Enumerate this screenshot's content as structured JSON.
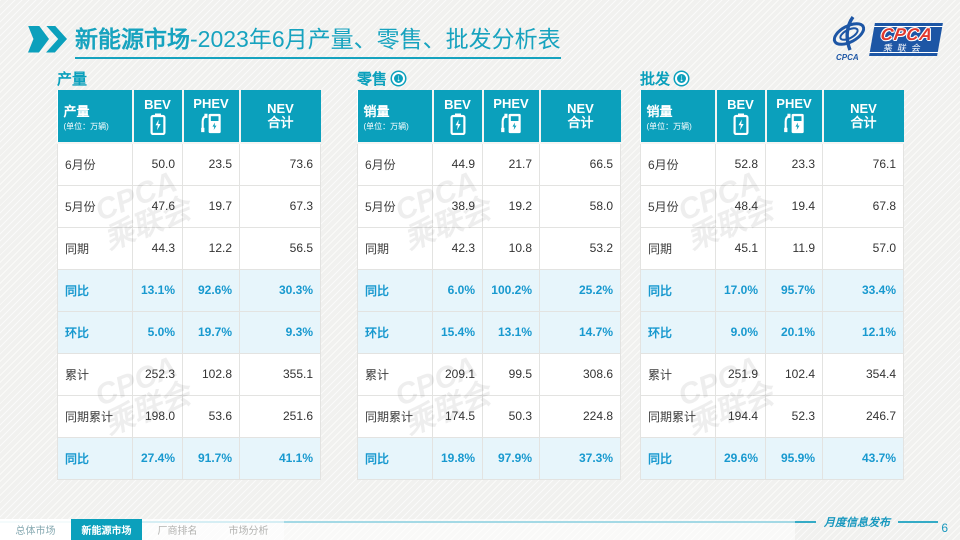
{
  "colors": {
    "accent": "#0BA0BC",
    "highlight_text": "#1899CF",
    "highlight_bg": "#E7F5FB",
    "logo_blue": "#1D56A5",
    "title": "#17A3BF",
    "page_bg": "#F1F1EF"
  },
  "title": {
    "emphasis": "新能源市场",
    "rest": "-2023年6月产量、零售、批发分析表"
  },
  "logo": {
    "emblem_text": "CPCA",
    "badge_text": "CPCA",
    "badge_sub": "乘联会"
  },
  "watermark": "CPCA\n乘联会",
  "tables": [
    {
      "section_title": "产量",
      "header": {
        "label": "产量",
        "unit": "(单位：万辆)",
        "col_bev": "BEV",
        "col_phev": "PHEV",
        "col_nev": "NEV\n合计"
      },
      "rows": [
        {
          "label": "6月份",
          "values": [
            "50.0",
            "23.5",
            "73.6"
          ],
          "highlight": false
        },
        {
          "label": "5月份",
          "values": [
            "47.6",
            "19.7",
            "67.3"
          ],
          "highlight": false
        },
        {
          "label": "同期",
          "values": [
            "44.3",
            "12.2",
            "56.5"
          ],
          "highlight": false
        },
        {
          "label": "同比",
          "values": [
            "13.1%",
            "92.6%",
            "30.3%"
          ],
          "highlight": true
        },
        {
          "label": "环比",
          "values": [
            "5.0%",
            "19.7%",
            "9.3%"
          ],
          "highlight": true
        },
        {
          "label": "累计",
          "values": [
            "252.3",
            "102.8",
            "355.1"
          ],
          "highlight": false
        },
        {
          "label": "同期累计",
          "values": [
            "198.0",
            "53.6",
            "251.6"
          ],
          "highlight": false
        },
        {
          "label": "同比",
          "values": [
            "27.4%",
            "91.7%",
            "41.1%"
          ],
          "highlight": true
        }
      ]
    },
    {
      "section_title": "零售",
      "header": {
        "label": "销量",
        "unit": "(单位：万辆)",
        "col_bev": "BEV",
        "col_phev": "PHEV",
        "col_nev": "NEV\n合计"
      },
      "rows": [
        {
          "label": "6月份",
          "values": [
            "44.9",
            "21.7",
            "66.5"
          ],
          "highlight": false
        },
        {
          "label": "5月份",
          "values": [
            "38.9",
            "19.2",
            "58.0"
          ],
          "highlight": false
        },
        {
          "label": "同期",
          "values": [
            "42.3",
            "10.8",
            "53.2"
          ],
          "highlight": false
        },
        {
          "label": "同比",
          "values": [
            "6.0%",
            "100.2%",
            "25.2%"
          ],
          "highlight": true
        },
        {
          "label": "环比",
          "values": [
            "15.4%",
            "13.1%",
            "14.7%"
          ],
          "highlight": true
        },
        {
          "label": "累计",
          "values": [
            "209.1",
            "99.5",
            "308.6"
          ],
          "highlight": false
        },
        {
          "label": "同期累计",
          "values": [
            "174.5",
            "50.3",
            "224.8"
          ],
          "highlight": false
        },
        {
          "label": "同比",
          "values": [
            "19.8%",
            "97.9%",
            "37.3%"
          ],
          "highlight": true
        }
      ]
    },
    {
      "section_title": "批发",
      "header": {
        "label": "销量",
        "unit": "(单位：万辆)",
        "col_bev": "BEV",
        "col_phev": "PHEV",
        "col_nev": "NEV\n合计"
      },
      "rows": [
        {
          "label": "6月份",
          "values": [
            "52.8",
            "23.3",
            "76.1"
          ],
          "highlight": false
        },
        {
          "label": "5月份",
          "values": [
            "48.4",
            "19.4",
            "67.8"
          ],
          "highlight": false
        },
        {
          "label": "同期",
          "values": [
            "45.1",
            "11.9",
            "57.0"
          ],
          "highlight": false
        },
        {
          "label": "同比",
          "values": [
            "17.0%",
            "95.7%",
            "33.4%"
          ],
          "highlight": true
        },
        {
          "label": "环比",
          "values": [
            "9.0%",
            "20.1%",
            "12.1%"
          ],
          "highlight": true
        },
        {
          "label": "累计",
          "values": [
            "251.9",
            "102.4",
            "354.4"
          ],
          "highlight": false
        },
        {
          "label": "同期累计",
          "values": [
            "194.4",
            "52.3",
            "246.7"
          ],
          "highlight": false
        },
        {
          "label": "同比",
          "values": [
            "29.6%",
            "95.9%",
            "43.7%"
          ],
          "highlight": true
        }
      ]
    }
  ],
  "footer": {
    "tabs": [
      {
        "label": "总体市场",
        "active": false
      },
      {
        "label": "新能源市场",
        "active": true
      },
      {
        "label": "厂商排名",
        "active": false
      },
      {
        "label": "市场分析",
        "active": false
      }
    ],
    "publish_label": "月度信息发布",
    "page_number": "6"
  }
}
